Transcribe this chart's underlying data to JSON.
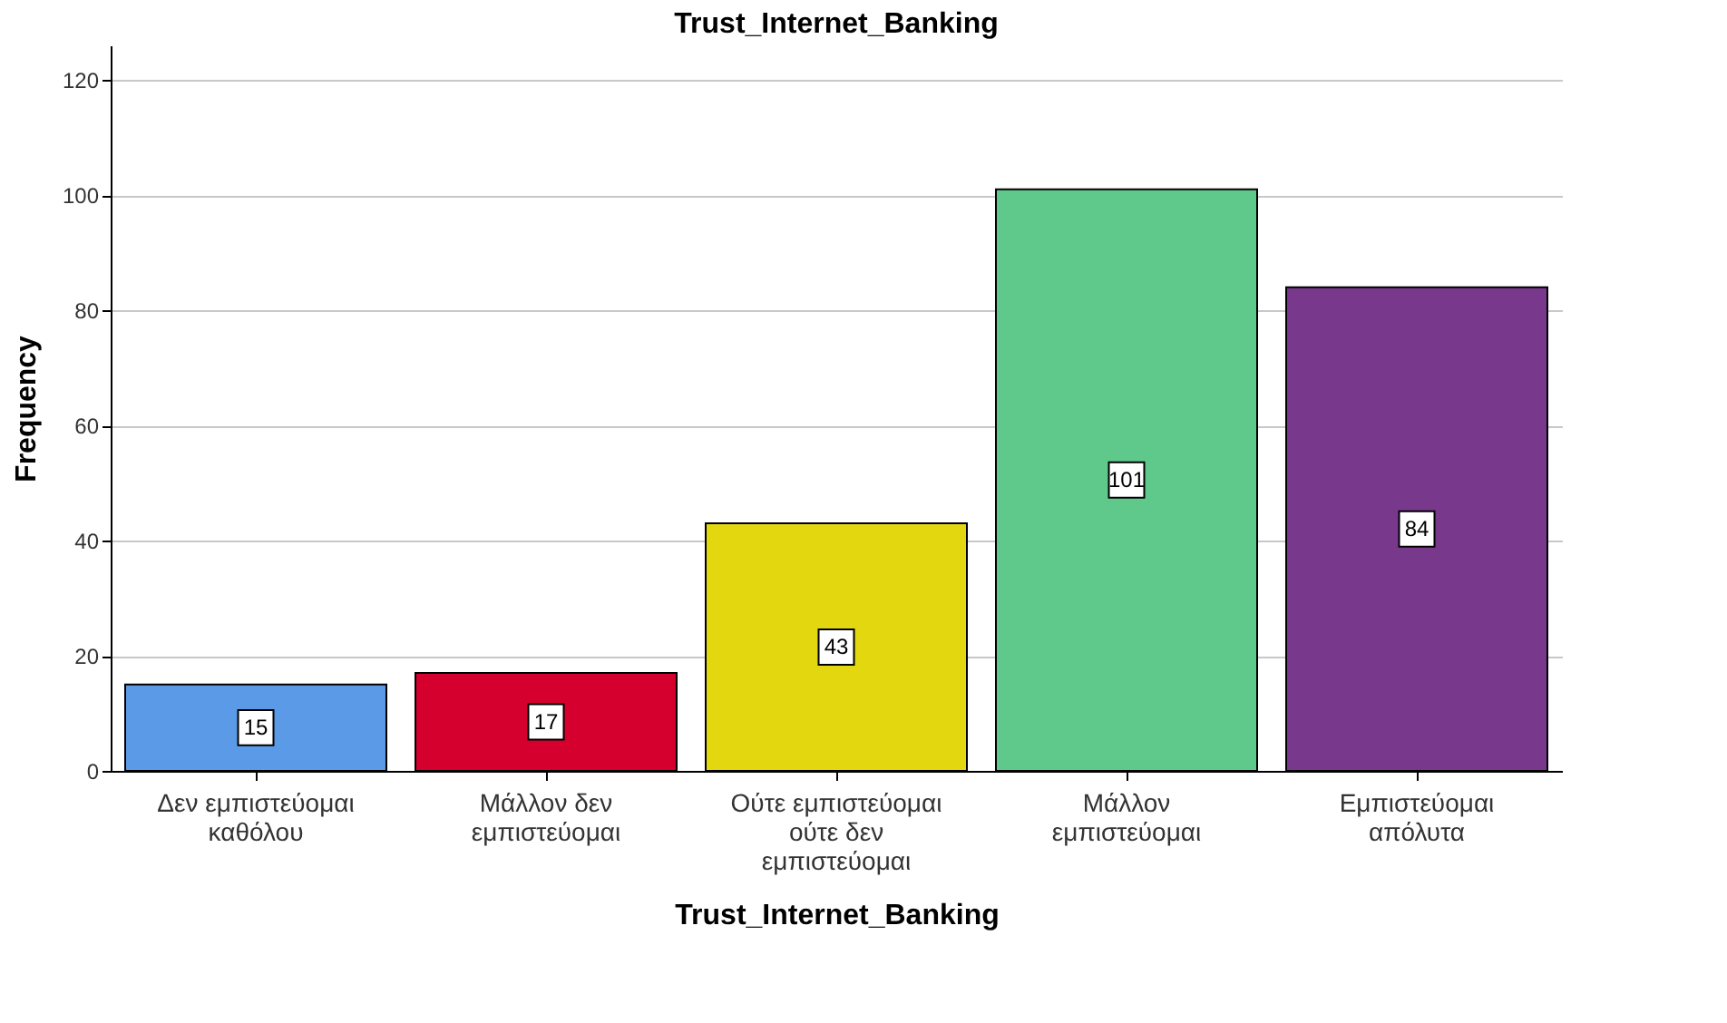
{
  "chart_data": {
    "type": "bar",
    "title": "Trust_Internet_Banking",
    "xlabel": "Trust_Internet_Banking",
    "ylabel": "Frequency",
    "categories": [
      "Δεν εμπιστεύομαι καθόλου",
      "Μάλλον δεν εμπιστεύομαι",
      "Ούτε εμπιστεύομαι ούτε δεν εμπιστεύομαι",
      "Μάλλον εμπιστεύομαι",
      "Εμπιστεύομαι απόλυτα"
    ],
    "values": [
      15,
      17,
      43,
      101,
      84
    ],
    "colors": [
      "#5a9ae6",
      "#d6002f",
      "#e3d80f",
      "#5ec98a",
      "#78388c"
    ],
    "ylim": [
      0,
      126
    ],
    "yticks": [
      0,
      20,
      40,
      60,
      80,
      100,
      120
    ],
    "grid": "y",
    "data_labels": true,
    "legend": false
  }
}
